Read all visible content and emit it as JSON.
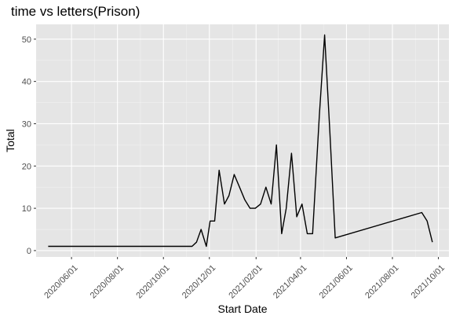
{
  "chart_data": {
    "type": "line",
    "title": "time vs letters(Prison)",
    "xlabel": "Start Date",
    "ylabel": "Total",
    "x_axis_type": "date",
    "xlim": [
      "2020-04-15",
      "2021-10-15"
    ],
    "ylim": [
      -1.5,
      53.5
    ],
    "x_ticks": [
      "2020-06-01",
      "2020-08-01",
      "2020-10-01",
      "2020-12-01",
      "2021-02-01",
      "2021-04-01",
      "2021-06-01",
      "2021-08-01",
      "2021-10-01"
    ],
    "x_tick_labels": [
      "2020/06/01",
      "2020/08/01",
      "2020/10/01",
      "2020/12/01",
      "2021/02/01",
      "2021/04/01",
      "2021/06/01",
      "2021/08/01",
      "2021/10/01"
    ],
    "y_ticks": [
      0,
      10,
      20,
      30,
      40,
      50
    ],
    "y_tick_labels": [
      "0",
      "10",
      "20",
      "30",
      "40",
      "50"
    ],
    "grid": true,
    "panel_color": "#e5e5e5",
    "line_color": "#000000",
    "series": [
      {
        "x": [
          "2020-05-01",
          "2020-11-08",
          "2020-11-14",
          "2020-11-20",
          "2020-11-27",
          "2020-12-02",
          "2020-12-08",
          "2020-12-14",
          "2020-12-21",
          "2020-12-27",
          "2021-01-03",
          "2021-01-10",
          "2021-01-17",
          "2021-01-24",
          "2021-01-31",
          "2021-02-07",
          "2021-02-14",
          "2021-02-21",
          "2021-02-28",
          "2021-03-07",
          "2021-03-13",
          "2021-03-20",
          "2021-03-27",
          "2021-04-03",
          "2021-04-10",
          "2021-04-17",
          "2021-04-26",
          "2021-05-03",
          "2021-05-10",
          "2021-05-17",
          "2021-09-09",
          "2021-09-16",
          "2021-09-23"
        ],
        "y": [
          1,
          1,
          2,
          5,
          1,
          7,
          7,
          19,
          11,
          13,
          18,
          15,
          12,
          10,
          10,
          11,
          15,
          11,
          25,
          4,
          10,
          23,
          8,
          11,
          4,
          4,
          32,
          51,
          28,
          3,
          9,
          7,
          2
        ]
      }
    ]
  }
}
